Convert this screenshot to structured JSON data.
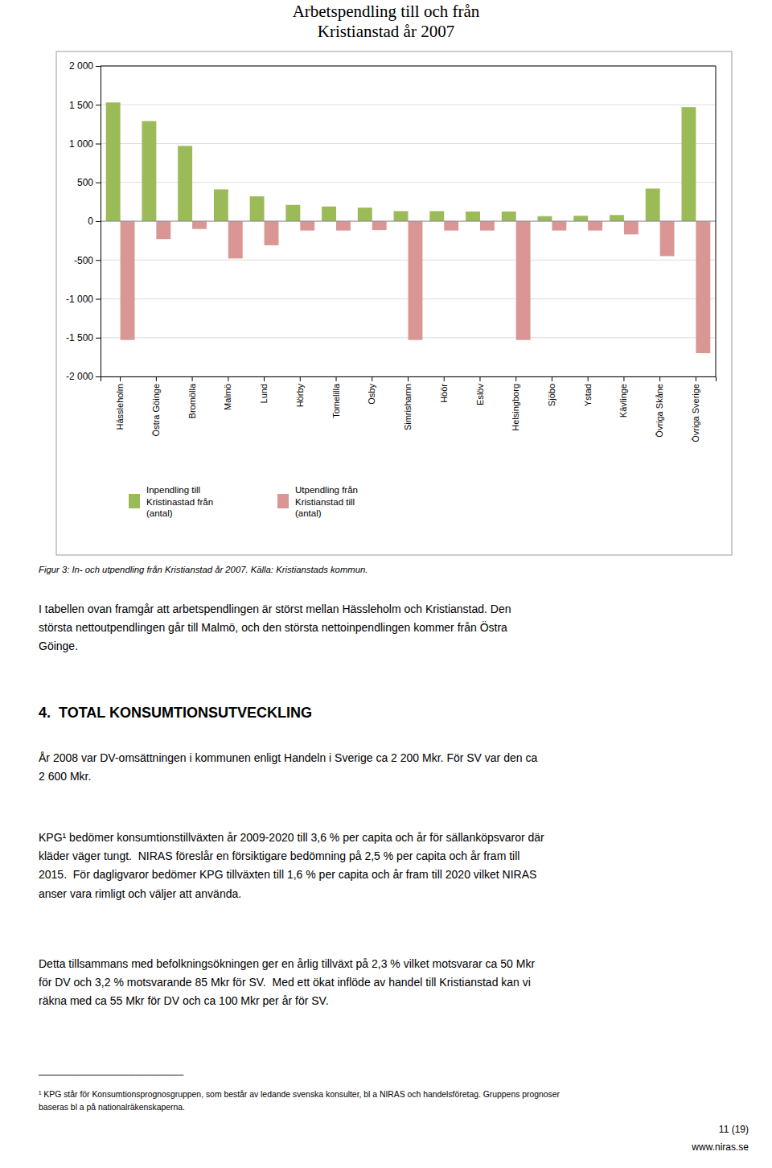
{
  "chart_data": {
    "type": "bar",
    "title": "Arbetspendling till och från\nKristianstad år 2007",
    "categories": [
      "Hässleholm",
      "Östra Göinge",
      "Bromölla",
      "Malmö",
      "Lund",
      "Hörby",
      "Tomelilla",
      "Osby",
      "Simrishamn",
      "Höör",
      "Eslöv",
      "Helsingborg",
      "Sjöbo",
      "Ystad",
      "Kävlinge",
      "Övriga Skåne",
      "Övriga Sverige"
    ],
    "series": [
      {
        "name": "Inpendling till\nKristinastad från\n(antal)",
        "color": "#9BBB59",
        "values": [
          1530,
          1290,
          970,
          410,
          320,
          210,
          190,
          175,
          130,
          130,
          125,
          125,
          65,
          70,
          80,
          420,
          1470
        ]
      },
      {
        "name": "Utpendling från\nKristianstad till\n(antal)",
        "color": "#DA9694",
        "values": [
          -1530,
          -230,
          -100,
          -480,
          -310,
          -120,
          -120,
          -115,
          -1530,
          -120,
          -120,
          -1530,
          -120,
          -120,
          -170,
          -450,
          -1700
        ]
      }
    ],
    "ylim": [
      -2000,
      2000
    ],
    "yticks": [
      {
        "value": -2000,
        "label": "-2 000"
      },
      {
        "value": -1500,
        "label": "-1 500"
      },
      {
        "value": -1000,
        "label": "-1 000"
      },
      -500,
      0,
      500,
      {
        "value": 1000,
        "label": "1 000"
      },
      {
        "value": 1500,
        "label": "1 500"
      },
      {
        "value": 2000,
        "label": "2 000"
      }
    ],
    "grid": true,
    "legend": "bottom"
  },
  "figure_caption": "Figur 3: In- och utpendling från Kristianstad år 2007. Källa: Kristianstads kommun.",
  "paragraph_1": "I tabellen ovan framgår att arbetspendlingen är störst mellan Hässleholm och Kristianstad. Den\nstörsta nettoutpendlingen går till Malmö, och den största nettoinpendlingen kommer från Östra\nGöinge.",
  "section_title": "4.  TOTAL KONSUMTIONSUTVECKLING",
  "paragraph_2": "År 2008 var DV-omsättningen i kommunen enligt Handeln i Sverige ca 2 200 Mkr. För SV var den ca\n2 600 Mkr.",
  "paragraph_3": "KPG¹ bedömer konsumtionstillväxten år 2009-2020 till 3,6 % per capita och år för sällanköpsvaror där\nkläder väger tungt.  NIRAS föreslår en försiktigare bedömning på 2,5 % per capita och år fram till\n2015.  För dagligvaror bedömer KPG tillväxten till 1,6 % per capita och år fram till 2020 vilket NIRAS\nanser vara rimligt och väljer att använda.",
  "paragraph_4": "Detta tillsammans med befolkningsökningen ger en årlig tillväxt på 2,3 % vilket motsvarar ca 50 Mkr\nför DV och 3,2 % motsvarande 85 Mkr för SV.  Med ett ökat inflöde av handel till Kristianstad kan vi\nräkna med ca 55 Mkr för DV och ca 100 Mkr per år för SV.",
  "footnote_rule": "___________________________",
  "footnote": "¹ KPG står för Konsumtionsprognosgruppen, som består av ledande svenska konsulter, bl a NIRAS och handelsföretag. Gruppens prognoser\nbaseras bl a på nationalräkenskaperna.",
  "page_number": "11 (19)",
  "website": "www.niras.se"
}
